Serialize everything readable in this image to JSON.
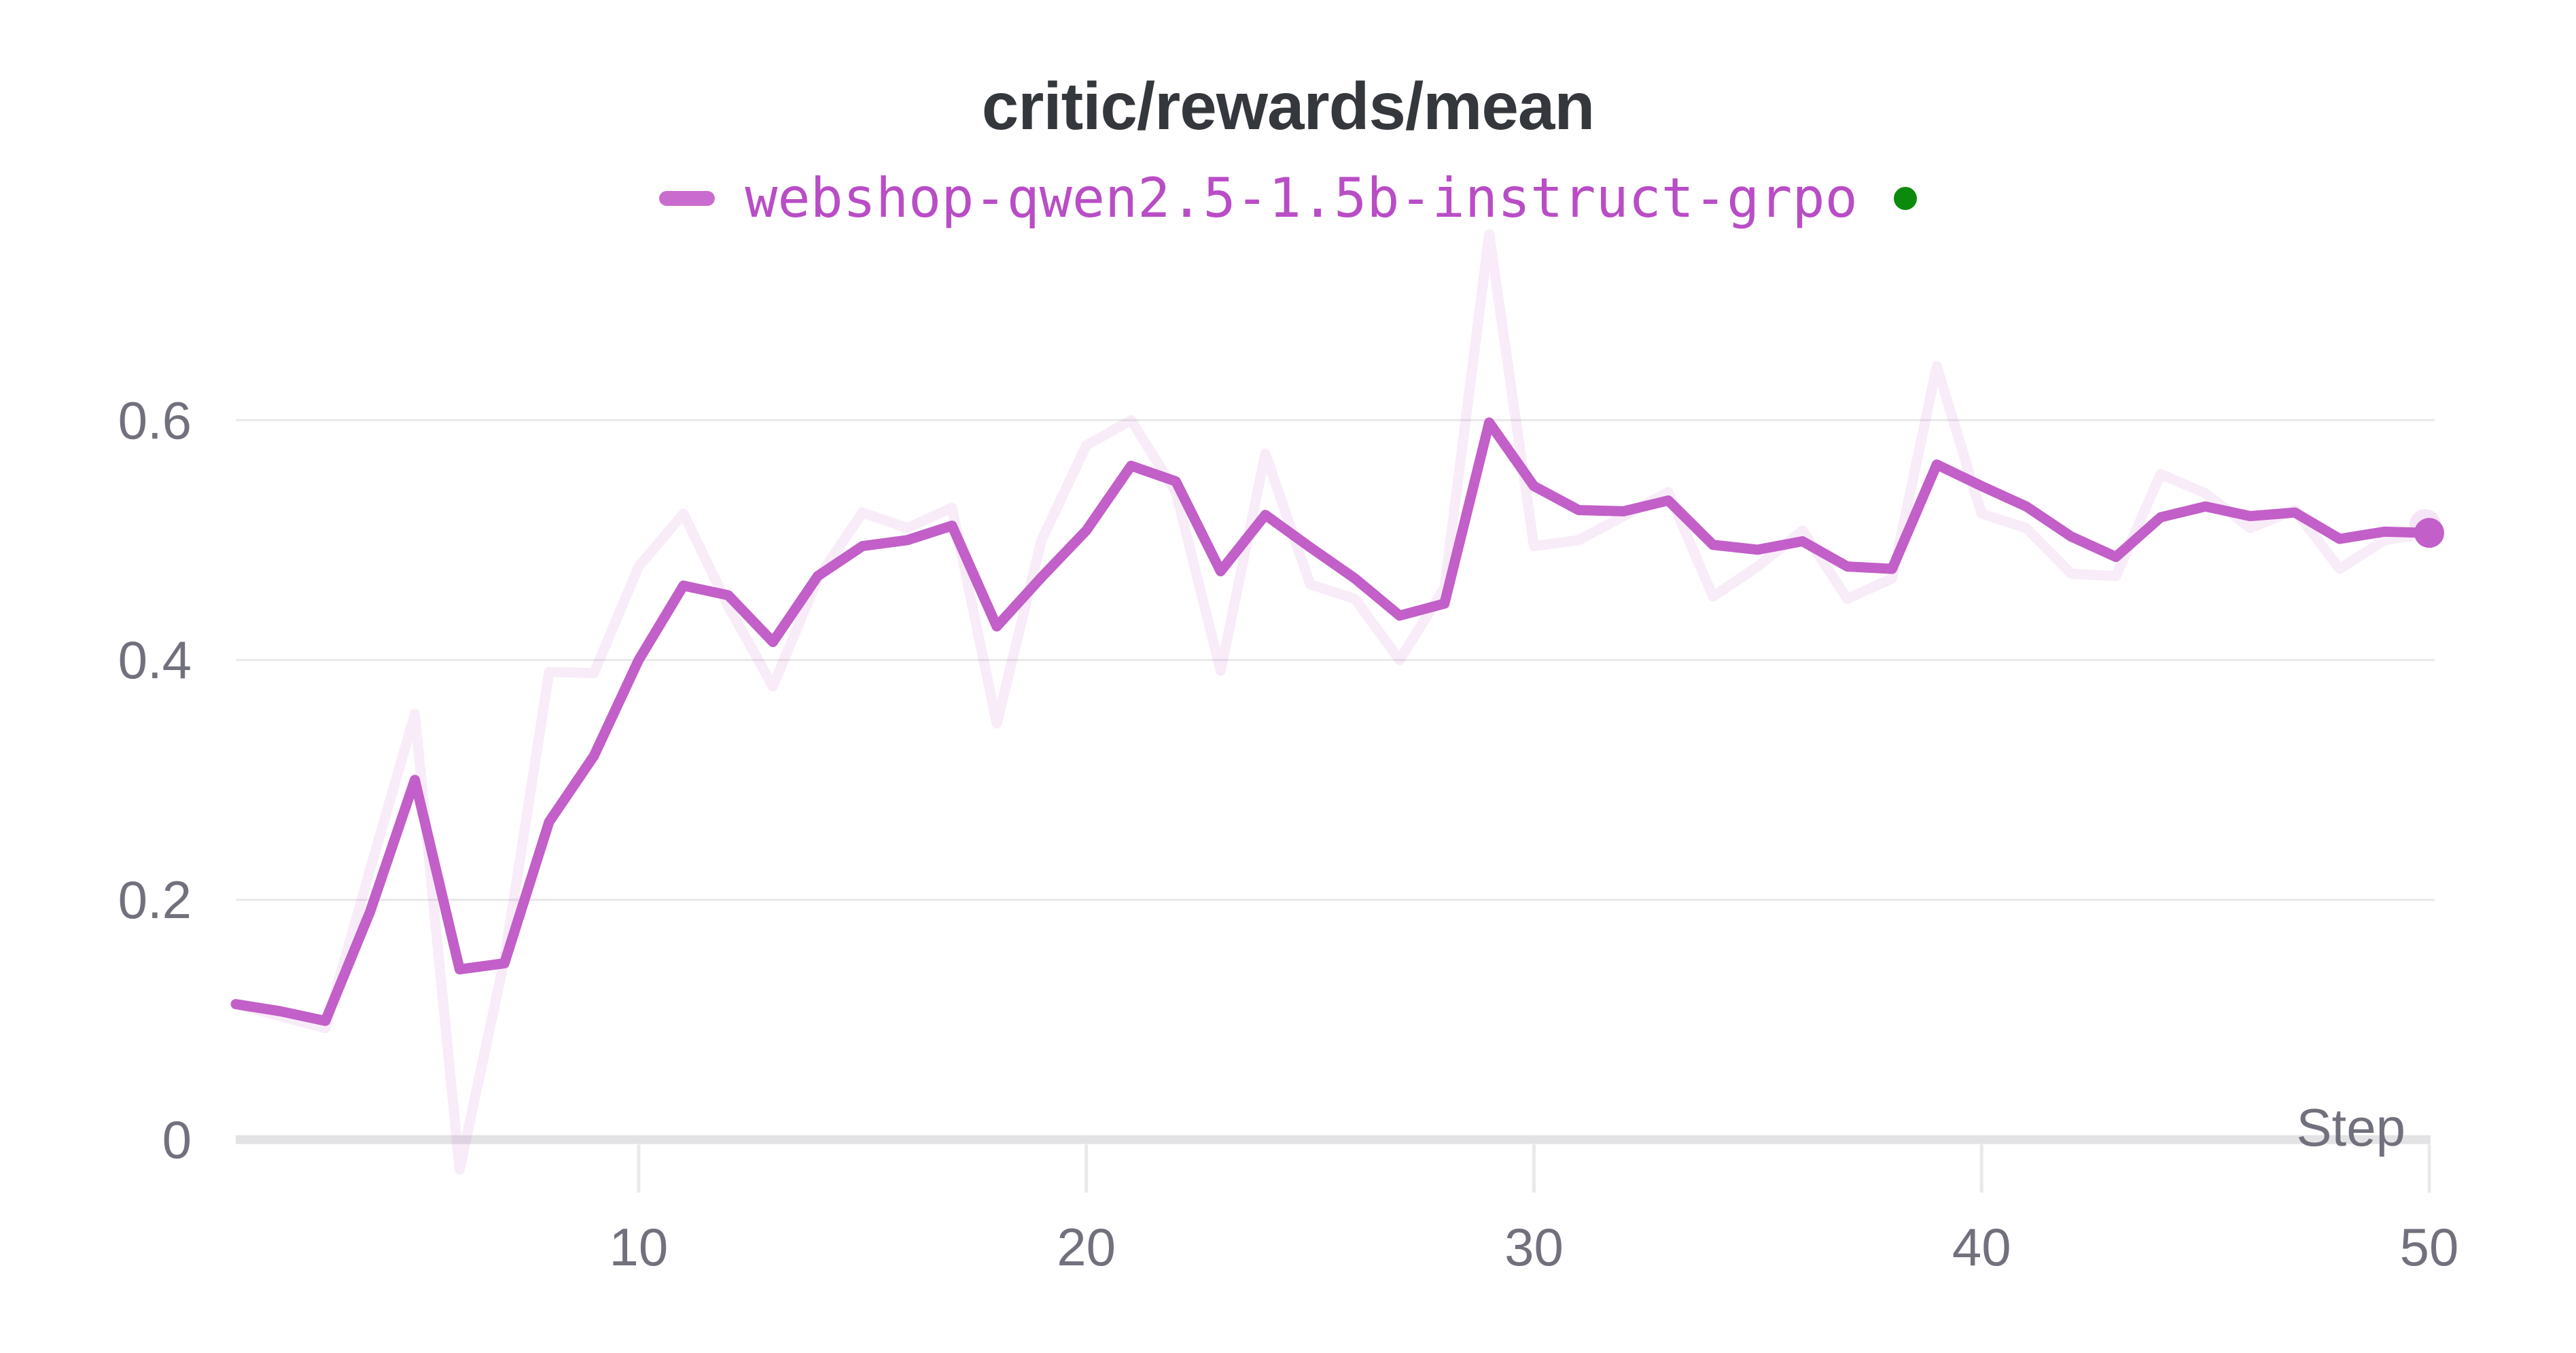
{
  "title": "critic/rewards/mean",
  "legend": {
    "series_label": "webshop-qwen2.5-1.5b-instruct-grpo",
    "swatch_color": "#ca6ccf",
    "label_color": "#b94dc6",
    "status_dot_color": "#0c8a0c"
  },
  "axes": {
    "x_title": "Step",
    "x_tick_labels": [
      "10",
      "20",
      "30",
      "40",
      "50"
    ],
    "y_tick_labels": [
      "0",
      "0.2",
      "0.4",
      "0.6"
    ]
  },
  "colors": {
    "accent_line": "#c25fc8",
    "raw_line": "rgba(194,95,200,0.12)",
    "raw_dot": "rgba(194,95,200,0.16)",
    "grid": "#e8e8e8",
    "axis": "#e3e3e5",
    "tick": "#e9e9eb",
    "label": "#71717d",
    "title": "#34373c",
    "background": "#ffffff"
  },
  "chart_data": {
    "type": "line",
    "title": "critic/rewards/mean",
    "xlabel": "Step",
    "ylabel": "",
    "x_range": [
      1,
      50
    ],
    "ylim": [
      0,
      0.78
    ],
    "x_ticks": [
      10,
      20,
      30,
      40,
      50
    ],
    "y_ticks": [
      0,
      0.2,
      0.4,
      0.6
    ],
    "grid": "horizontal",
    "legend_position": "top-center",
    "x": [
      1,
      2,
      3,
      4,
      5,
      6,
      7,
      8,
      9,
      10,
      11,
      12,
      13,
      14,
      15,
      16,
      17,
      18,
      19,
      20,
      21,
      22,
      23,
      24,
      25,
      26,
      27,
      28,
      29,
      30,
      31,
      32,
      33,
      34,
      35,
      36,
      37,
      38,
      39,
      40,
      41,
      42,
      43,
      44,
      45,
      46,
      47,
      48,
      49,
      50
    ],
    "series": [
      {
        "name": "webshop-qwen2.5-1.5b-instruct-grpo",
        "style": "smoothed",
        "values": [
          0.113,
          0.107,
          0.099,
          0.19,
          0.3,
          0.142,
          0.147,
          0.265,
          0.32,
          0.4,
          0.462,
          0.454,
          0.415,
          0.47,
          0.495,
          0.5,
          0.512,
          0.428,
          0.469,
          0.508,
          0.562,
          0.549,
          0.474,
          0.521,
          0.494,
          0.468,
          0.437,
          0.447,
          0.598,
          0.545,
          0.525,
          0.524,
          0.533,
          0.496,
          0.492,
          0.499,
          0.478,
          0.476,
          0.563,
          0.545,
          0.528,
          0.503,
          0.486,
          0.519,
          0.528,
          0.52,
          0.523,
          0.501,
          0.507,
          0.506
        ]
      },
      {
        "name": "webshop-qwen2.5-1.5b-instruct-grpo (raw)",
        "style": "raw-unsmoothed",
        "values": [
          0.113,
          0.103,
          0.093,
          0.225,
          0.355,
          -0.025,
          0.15,
          0.39,
          0.389,
          0.478,
          0.522,
          0.445,
          0.378,
          0.468,
          0.523,
          0.51,
          0.527,
          0.347,
          0.5,
          0.579,
          0.6,
          0.54,
          0.391,
          0.572,
          0.463,
          0.451,
          0.4,
          0.46,
          0.755,
          0.495,
          0.5,
          0.52,
          0.54,
          0.453,
          0.478,
          0.508,
          0.451,
          0.468,
          0.645,
          0.522,
          0.51,
          0.472,
          0.47,
          0.555,
          0.539,
          0.51,
          0.525,
          0.476,
          0.5,
          0.506
        ]
      }
    ]
  }
}
